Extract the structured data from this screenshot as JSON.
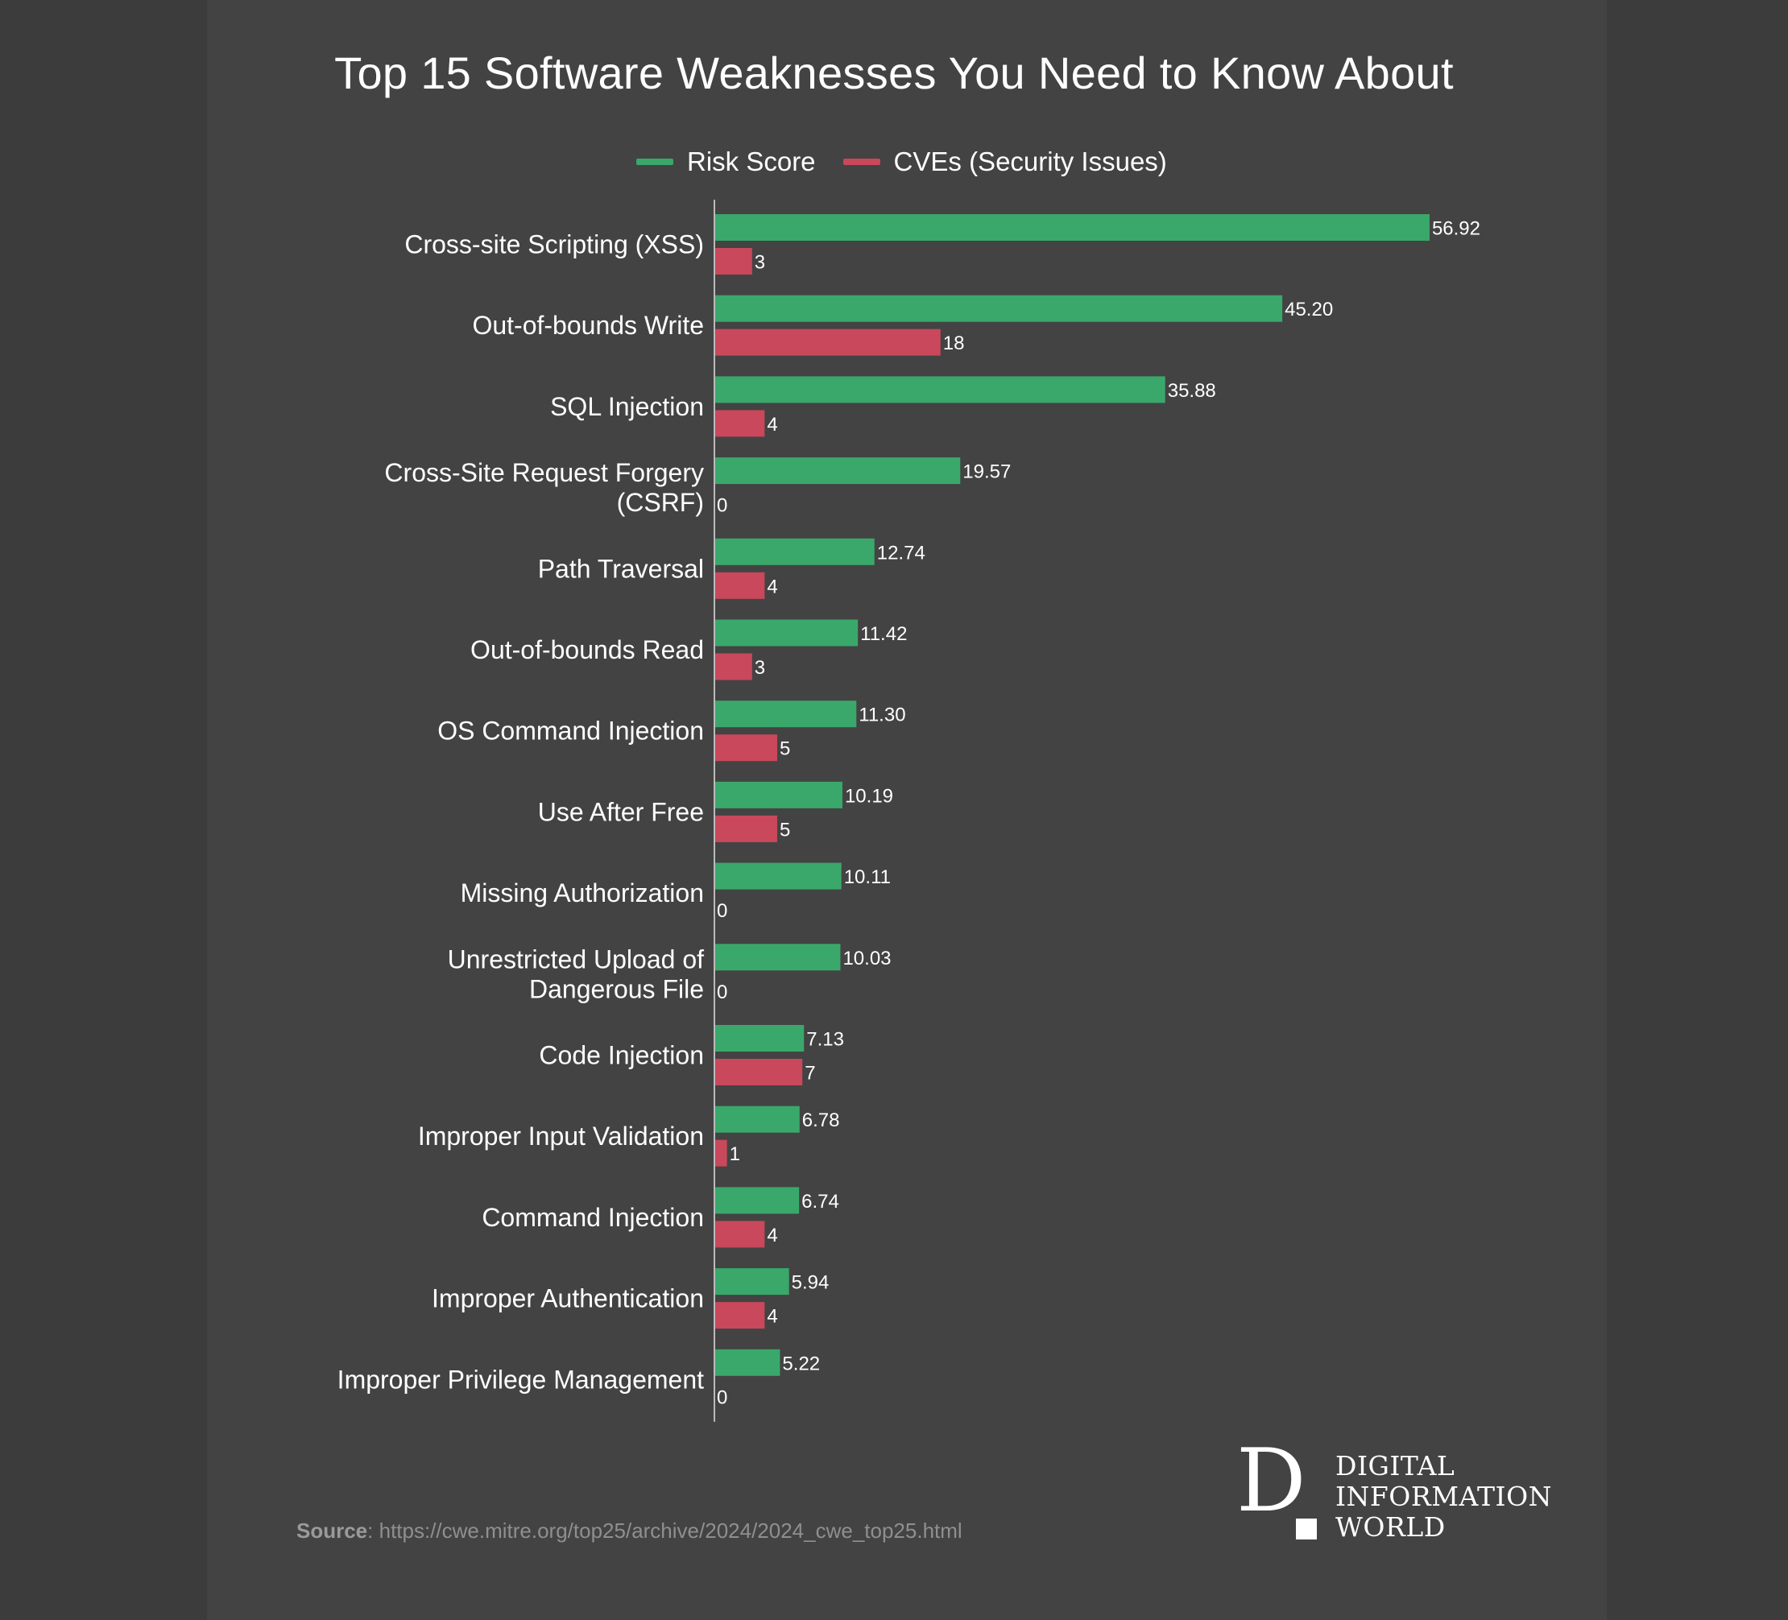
{
  "chart_data": {
    "type": "bar",
    "orientation": "horizontal",
    "title": "Top 15 Software Weaknesses You Need to Know About",
    "categories": [
      "Cross-site Scripting (XSS)",
      "Out-of-bounds Write",
      "SQL Injection",
      "Cross-Site Request Forgery (CSRF)",
      "Path Traversal",
      "Out-of-bounds Read",
      "OS Command Injection",
      "Use After Free",
      "Missing Authorization",
      "Unrestricted Upload of Dangerous File",
      "Code Injection",
      "Improper Input Validation",
      "Command Injection",
      "Improper Authentication",
      "Improper Privilege Management"
    ],
    "series": [
      {
        "name": "Risk Score",
        "color": "#3aa86b",
        "values": [
          56.92,
          45.2,
          35.88,
          19.57,
          12.74,
          11.42,
          11.3,
          10.19,
          10.11,
          10.03,
          7.13,
          6.78,
          6.74,
          5.94,
          5.22
        ],
        "labels": [
          "56.92",
          "45.20",
          "35.88",
          "19.57",
          "12.74",
          "11.42",
          "11.30",
          "10.19",
          "10.11",
          "10.03",
          "7.13",
          "6.78",
          "6.74",
          "5.94",
          "5.22"
        ]
      },
      {
        "name": "CVEs (Security Issues)",
        "color": "#c9485b",
        "values": [
          3,
          18,
          4,
          0,
          4,
          3,
          5,
          5,
          0,
          0,
          7,
          1,
          4,
          4,
          0
        ],
        "labels": [
          "3",
          "18",
          "4",
          "0",
          "4",
          "3",
          "5",
          "5",
          "0",
          "0",
          "7",
          "1",
          "4",
          "4",
          "0"
        ]
      }
    ],
    "legend": "top-center",
    "grid": false,
    "xlim": [
      0,
      57
    ]
  },
  "source": {
    "label": "Source",
    "text": ": https://cwe.mitre.org/top25/archive/2024/2024_cwe_top25.html"
  },
  "logo": {
    "letter": "D",
    "lines": [
      "DIGITAL",
      "INFORMATION",
      "WORLD"
    ]
  }
}
